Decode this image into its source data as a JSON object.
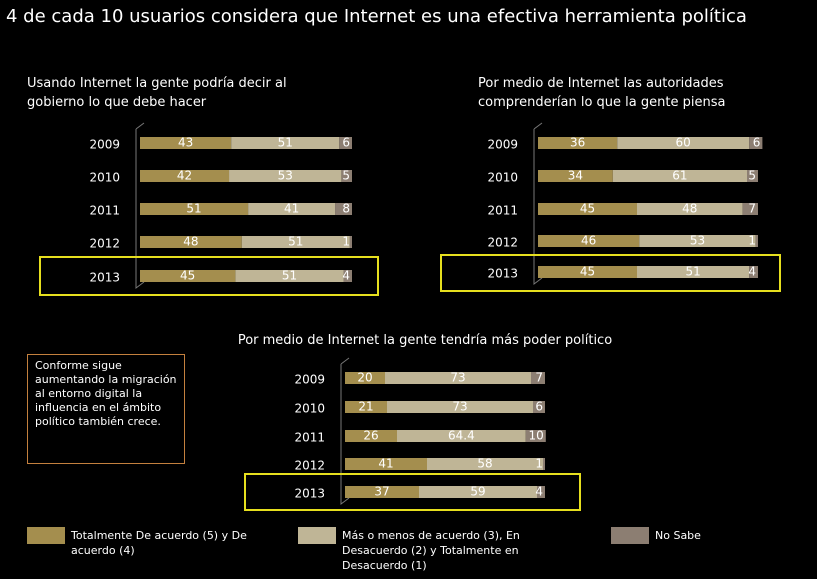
{
  "title": "4 de cada 10 usuarios considera que Internet es una efectiva herramienta política",
  "note": "Conforme sigue aumentando la migración al entorno digital la influencia en el ámbito político también crece.",
  "chart_data": [
    {
      "type": "bar",
      "orientation": "horizontal",
      "stacked": true,
      "title": "Usando Internet la gente podría decir al gobierno lo que debe hacer",
      "categories": [
        "2009",
        "2010",
        "2011",
        "2012",
        "2013"
      ],
      "highlight": "2013",
      "xlim": [
        0,
        100
      ],
      "series": [
        {
          "name": "Totalmente De acuerdo (5) y De acuerdo (4)",
          "color": "#a48e4e",
          "values": [
            43,
            42,
            51,
            48,
            45
          ]
        },
        {
          "name": "Más o menos de acuerdo (3), En Desacuerdo (2)  y Totalmente en Desacuerdo (1)",
          "color": "#bfb596",
          "values": [
            51,
            53,
            41,
            51,
            51
          ]
        },
        {
          "name": "No Sabe",
          "color": "#8c7e72",
          "values": [
            6,
            5,
            8,
            1,
            4
          ]
        }
      ]
    },
    {
      "type": "bar",
      "orientation": "horizontal",
      "stacked": true,
      "title": "Por medio de Internet las autoridades comprenderían lo que la gente piensa",
      "categories": [
        "2009",
        "2010",
        "2011",
        "2012",
        "2013"
      ],
      "highlight": "2013",
      "xlim": [
        0,
        100
      ],
      "series": [
        {
          "name": "Totalmente De acuerdo (5) y De acuerdo (4)",
          "color": "#a48e4e",
          "values": [
            36,
            34,
            45,
            46,
            45
          ]
        },
        {
          "name": "Más o menos de acuerdo (3), En Desacuerdo (2)  y Totalmente en Desacuerdo (1)",
          "color": "#bfb596",
          "values": [
            60,
            61,
            48,
            53,
            51
          ]
        },
        {
          "name": "No Sabe",
          "color": "#8c7e72",
          "values": [
            6,
            5,
            7,
            1,
            4
          ]
        }
      ]
    },
    {
      "type": "bar",
      "orientation": "horizontal",
      "stacked": true,
      "title": "Por medio de Internet la gente tendría más poder político",
      "categories": [
        "2009",
        "2010",
        "2011",
        "2012",
        "2013"
      ],
      "highlight": "2013",
      "xlim": [
        0,
        100
      ],
      "series": [
        {
          "name": "Totalmente De acuerdo (5) y De acuerdo (4)",
          "color": "#a48e4e",
          "values": [
            20,
            21,
            26,
            41,
            37
          ]
        },
        {
          "name": "Más o menos de acuerdo (3), En Desacuerdo (2)  y Totalmente en Desacuerdo (1)",
          "color": "#bfb596",
          "values": [
            73,
            73,
            64.4,
            58,
            59
          ]
        },
        {
          "name": "No Sabe",
          "color": "#8c7e72",
          "values": [
            7,
            6,
            10,
            1,
            4
          ]
        }
      ]
    }
  ]
}
